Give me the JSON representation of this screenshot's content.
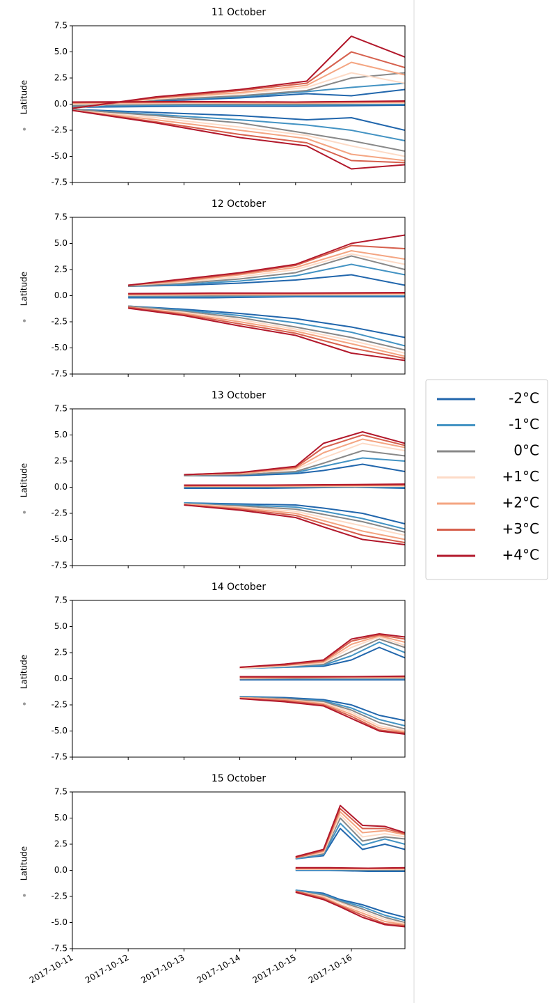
{
  "chart_data": [
    {
      "type": "line",
      "title": "11 October",
      "ylabel": "Latitude",
      "ylim": [
        -7.5,
        7.5
      ],
      "yticks": [
        7.5,
        5.0,
        2.5,
        0.0,
        -2.5,
        -5.0,
        -7.5
      ],
      "xlim": [
        0,
        5.96
      ],
      "xticks": [
        0,
        1,
        2,
        3,
        4,
        5
      ],
      "x": [
        0,
        1.5,
        3,
        4.2,
        5,
        5.96,
        null,
        0,
        2,
        4,
        5.96,
        null,
        0,
        1.5,
        3,
        4.2,
        5,
        5.96
      ],
      "series": [
        {
          "values": [
            -0.3,
            0.3,
            0.6,
            1.0,
            0.8,
            1.4,
            null,
            -0.3,
            -0.2,
            -0.2,
            -0.1,
            null,
            -0.5,
            -0.8,
            -1.1,
            -1.5,
            -1.3,
            -2.5
          ]
        },
        {
          "values": [
            -0.3,
            0.4,
            0.7,
            1.2,
            1.6,
            2.0,
            null,
            -0.2,
            -0.1,
            -0.1,
            0.0,
            null,
            -0.5,
            -1.0,
            -1.5,
            -2.0,
            -2.5,
            -3.5
          ]
        },
        {
          "values": [
            -0.3,
            0.4,
            0.8,
            1.3,
            2.5,
            3.0,
            null,
            -0.1,
            0.0,
            0.0,
            0.1,
            null,
            -0.5,
            -1.1,
            -1.8,
            -2.8,
            -3.5,
            -4.5
          ]
        },
        {
          "values": [
            -0.4,
            0.5,
            1.0,
            1.6,
            3.0,
            2.0,
            null,
            0.0,
            0.1,
            0.1,
            0.1,
            null,
            -0.6,
            -1.3,
            -2.2,
            -3.0,
            -4.0,
            -5.0
          ]
        },
        {
          "values": [
            -0.4,
            0.6,
            1.1,
            1.8,
            4.0,
            2.8,
            null,
            0.1,
            0.15,
            0.1,
            0.2,
            null,
            -0.6,
            -1.5,
            -2.5,
            -3.3,
            -4.8,
            -5.4
          ]
        },
        {
          "values": [
            -0.4,
            0.6,
            1.3,
            2.0,
            5.0,
            3.5,
            null,
            0.15,
            0.2,
            0.2,
            0.25,
            null,
            -0.6,
            -1.7,
            -2.9,
            -3.7,
            -5.4,
            -5.6
          ]
        },
        {
          "values": [
            -0.4,
            0.7,
            1.4,
            2.2,
            6.5,
            4.5,
            null,
            0.2,
            0.25,
            0.2,
            0.3,
            null,
            -0.6,
            -1.8,
            -3.2,
            -4.0,
            -6.2,
            -5.8
          ]
        }
      ]
    },
    {
      "type": "line",
      "title": "12 October",
      "ylabel": "Latitude",
      "ylim": [
        -7.5,
        7.5
      ],
      "yticks": [
        7.5,
        5.0,
        2.5,
        0.0,
        -2.5,
        -5.0,
        -7.5
      ],
      "xlim": [
        0,
        5.96
      ],
      "xticks": [
        0,
        1,
        2,
        3,
        4,
        5
      ],
      "x": [
        1,
        2,
        3,
        4,
        5,
        5.96,
        null,
        1,
        2.5,
        4,
        5.96,
        null,
        1,
        2,
        3,
        4,
        5,
        5.96
      ],
      "series": [
        {
          "values": [
            0.9,
            1.0,
            1.2,
            1.5,
            2.0,
            1.0,
            null,
            -0.2,
            -0.2,
            -0.1,
            -0.1,
            null,
            -1.0,
            -1.3,
            -1.7,
            -2.2,
            -3.0,
            -4.0
          ]
        },
        {
          "values": [
            0.9,
            1.1,
            1.4,
            1.9,
            3.0,
            2.0,
            null,
            -0.1,
            -0.1,
            0.0,
            0.0,
            null,
            -1.0,
            -1.4,
            -1.9,
            -2.6,
            -3.5,
            -4.8
          ]
        },
        {
          "values": [
            0.9,
            1.2,
            1.6,
            2.2,
            3.8,
            2.5,
            null,
            0.0,
            0.0,
            0.05,
            0.1,
            null,
            -1.0,
            -1.5,
            -2.1,
            -3.0,
            -4.0,
            -5.2
          ]
        },
        {
          "values": [
            1.0,
            1.3,
            1.8,
            2.5,
            4.0,
            3.0,
            null,
            0.05,
            0.1,
            0.1,
            0.1,
            null,
            -1.1,
            -1.6,
            -2.3,
            -3.2,
            -4.3,
            -5.5
          ]
        },
        {
          "values": [
            1.0,
            1.4,
            2.0,
            2.7,
            4.3,
            3.5,
            null,
            0.1,
            0.15,
            0.15,
            0.2,
            null,
            -1.1,
            -1.7,
            -2.5,
            -3.4,
            -4.6,
            -5.8
          ]
        },
        {
          "values": [
            1.0,
            1.5,
            2.1,
            2.9,
            4.8,
            4.5,
            null,
            0.15,
            0.2,
            0.2,
            0.25,
            null,
            -1.1,
            -1.8,
            -2.7,
            -3.6,
            -5.0,
            -6.0
          ]
        },
        {
          "values": [
            1.0,
            1.6,
            2.2,
            3.0,
            5.0,
            5.8,
            null,
            0.2,
            0.25,
            0.25,
            0.3,
            null,
            -1.2,
            -1.9,
            -2.9,
            -3.8,
            -5.5,
            -6.2
          ]
        }
      ]
    },
    {
      "type": "line",
      "title": "13 October",
      "ylabel": "Latitude",
      "ylim": [
        -7.5,
        7.5
      ],
      "yticks": [
        7.5,
        5.0,
        2.5,
        0.0,
        -2.5,
        -5.0,
        -7.5
      ],
      "xlim": [
        0,
        5.96
      ],
      "xticks": [
        0,
        1,
        2,
        3,
        4,
        5
      ],
      "x": [
        2,
        3,
        4,
        4.5,
        5.2,
        5.96,
        null,
        2,
        3.5,
        5,
        5.96,
        null,
        2,
        3,
        4,
        4.5,
        5.2,
        5.96
      ],
      "series": [
        {
          "values": [
            1.1,
            1.1,
            1.3,
            1.6,
            2.2,
            1.5,
            null,
            -0.1,
            -0.1,
            0.0,
            -0.1,
            null,
            -1.5,
            -1.6,
            -1.7,
            -2.0,
            -2.5,
            -3.5
          ]
        },
        {
          "values": [
            1.1,
            1.2,
            1.4,
            2.0,
            2.8,
            2.5,
            null,
            0.0,
            0.0,
            0.0,
            0.0,
            null,
            -1.5,
            -1.7,
            -1.9,
            -2.3,
            -3.0,
            -4.0
          ]
        },
        {
          "values": [
            1.1,
            1.2,
            1.5,
            2.3,
            3.5,
            3.0,
            null,
            0.05,
            0.05,
            0.05,
            0.1,
            null,
            -1.6,
            -1.8,
            -2.1,
            -2.6,
            -3.3,
            -4.3
          ]
        },
        {
          "values": [
            1.2,
            1.3,
            1.7,
            2.8,
            4.2,
            3.5,
            null,
            0.1,
            0.1,
            0.1,
            0.1,
            null,
            -1.6,
            -1.9,
            -2.3,
            -2.9,
            -3.7,
            -4.6
          ]
        },
        {
          "values": [
            1.2,
            1.3,
            1.8,
            3.3,
            4.6,
            3.8,
            null,
            0.1,
            0.1,
            0.15,
            0.2,
            null,
            -1.6,
            -2.0,
            -2.5,
            -3.2,
            -4.2,
            -5.0
          ]
        },
        {
          "values": [
            1.2,
            1.4,
            1.9,
            3.8,
            5.0,
            4.0,
            null,
            0.15,
            0.2,
            0.2,
            0.2,
            null,
            -1.7,
            -2.1,
            -2.7,
            -3.5,
            -4.6,
            -5.3
          ]
        },
        {
          "values": [
            1.2,
            1.4,
            2.0,
            4.2,
            5.3,
            4.2,
            null,
            0.2,
            0.2,
            0.25,
            0.3,
            null,
            -1.7,
            -2.2,
            -2.9,
            -3.8,
            -5.0,
            -5.5
          ]
        }
      ]
    },
    {
      "type": "line",
      "title": "14 October",
      "ylabel": "Latitude",
      "ylim": [
        -7.5,
        7.5
      ],
      "yticks": [
        7.5,
        5.0,
        2.5,
        0.0,
        -2.5,
        -5.0,
        -7.5
      ],
      "xlim": [
        0,
        5.96
      ],
      "xticks": [
        0,
        1,
        2,
        3,
        4,
        5
      ],
      "x": [
        3,
        3.8,
        4.5,
        5,
        5.5,
        5.96,
        null,
        3,
        4,
        5,
        5.96,
        null,
        3,
        3.8,
        4.5,
        5,
        5.5,
        5.96
      ],
      "series": [
        {
          "values": [
            1.0,
            1.1,
            1.2,
            1.8,
            3.0,
            2.0,
            null,
            -0.1,
            -0.1,
            -0.1,
            -0.1,
            null,
            -1.7,
            -1.8,
            -2.0,
            -2.5,
            -3.5,
            -4.0
          ]
        },
        {
          "values": [
            1.0,
            1.1,
            1.3,
            2.2,
            3.5,
            2.5,
            null,
            0.0,
            0.0,
            0.0,
            0.0,
            null,
            -1.7,
            -1.9,
            -2.1,
            -2.8,
            -3.9,
            -4.5
          ]
        },
        {
          "values": [
            1.0,
            1.2,
            1.4,
            2.6,
            3.8,
            3.0,
            null,
            0.0,
            0.05,
            0.05,
            0.05,
            null,
            -1.8,
            -1.9,
            -2.2,
            -3.0,
            -4.2,
            -4.8
          ]
        },
        {
          "values": [
            1.0,
            1.2,
            1.5,
            3.0,
            4.0,
            3.2,
            null,
            0.05,
            0.1,
            0.1,
            0.1,
            null,
            -1.8,
            -2.0,
            -2.3,
            -3.2,
            -4.5,
            -5.0
          ]
        },
        {
          "values": [
            1.1,
            1.3,
            1.6,
            3.3,
            4.1,
            3.5,
            null,
            0.1,
            0.1,
            0.15,
            0.15,
            null,
            -1.8,
            -2.0,
            -2.4,
            -3.4,
            -4.7,
            -5.1
          ]
        },
        {
          "values": [
            1.1,
            1.3,
            1.7,
            3.6,
            4.2,
            3.8,
            null,
            0.15,
            0.15,
            0.2,
            0.2,
            null,
            -1.9,
            -2.1,
            -2.5,
            -3.6,
            -4.9,
            -5.2
          ]
        },
        {
          "values": [
            1.1,
            1.4,
            1.8,
            3.8,
            4.3,
            4.0,
            null,
            0.2,
            0.2,
            0.2,
            0.25,
            null,
            -1.9,
            -2.2,
            -2.6,
            -3.8,
            -5.0,
            -5.3
          ]
        }
      ]
    },
    {
      "type": "line",
      "title": "15 October",
      "ylabel": "Latitude",
      "ylim": [
        -7.5,
        7.5
      ],
      "yticks": [
        7.5,
        5.0,
        2.5,
        0.0,
        -2.5,
        -5.0,
        -7.5
      ],
      "xlim": [
        0,
        5.96
      ],
      "xticks": [
        {
          "value": 0,
          "label": "2017-10-11"
        },
        {
          "value": 1,
          "label": "2017-10-12"
        },
        {
          "value": 2,
          "label": "2017-10-13"
        },
        {
          "value": 3,
          "label": "2017-10-14"
        },
        {
          "value": 4,
          "label": "2017-10-15"
        },
        {
          "value": 5,
          "label": "2017-10-16"
        }
      ],
      "x": [
        4,
        4.5,
        4.8,
        5.2,
        5.6,
        5.96,
        null,
        4,
        4.6,
        5.3,
        5.96,
        null,
        4,
        4.5,
        4.8,
        5.2,
        5.6,
        5.96
      ],
      "series": [
        {
          "values": [
            1.1,
            1.4,
            4.0,
            2.0,
            2.5,
            2.0,
            null,
            0.0,
            0.0,
            -0.1,
            -0.1,
            null,
            -1.9,
            -2.2,
            -2.8,
            -3.3,
            -4.0,
            -4.5
          ]
        },
        {
          "values": [
            1.1,
            1.5,
            4.5,
            2.4,
            3.0,
            2.5,
            null,
            0.05,
            0.05,
            0.0,
            0.0,
            null,
            -1.9,
            -2.3,
            -2.9,
            -3.5,
            -4.3,
            -4.8
          ]
        },
        {
          "values": [
            1.2,
            1.6,
            5.0,
            2.8,
            3.2,
            3.0,
            null,
            0.1,
            0.1,
            0.05,
            0.05,
            null,
            -2.0,
            -2.4,
            -3.0,
            -3.7,
            -4.5,
            -5.0
          ]
        },
        {
          "values": [
            1.2,
            1.7,
            5.3,
            3.2,
            3.5,
            3.2,
            null,
            0.1,
            0.1,
            0.1,
            0.1,
            null,
            -2.0,
            -2.5,
            -3.1,
            -3.9,
            -4.7,
            -5.1
          ]
        },
        {
          "values": [
            1.2,
            1.8,
            5.6,
            3.6,
            3.8,
            3.4,
            null,
            0.15,
            0.15,
            0.15,
            0.15,
            null,
            -2.0,
            -2.6,
            -3.3,
            -4.1,
            -4.9,
            -5.2
          ]
        },
        {
          "values": [
            1.2,
            1.9,
            5.9,
            4.0,
            4.0,
            3.5,
            null,
            0.2,
            0.2,
            0.2,
            0.2,
            null,
            -2.0,
            -2.7,
            -3.4,
            -4.3,
            -5.1,
            -5.3
          ]
        },
        {
          "values": [
            1.3,
            2.0,
            6.2,
            4.3,
            4.2,
            3.6,
            null,
            0.25,
            0.25,
            0.2,
            0.25,
            null,
            -2.1,
            -2.8,
            -3.5,
            -4.5,
            -5.2,
            -5.4
          ]
        }
      ]
    }
  ],
  "legend": [
    {
      "name": "-2°C",
      "color": "#2166ac"
    },
    {
      "name": "-1°C",
      "color": "#4393c3"
    },
    {
      "name": "0°C",
      "color": "#888888"
    },
    {
      "name": "+1°C",
      "color": "#fddbc7"
    },
    {
      "name": "+2°C",
      "color": "#f4a582"
    },
    {
      "name": "+3°C",
      "color": "#d6604d"
    },
    {
      "name": "+4°C",
      "color": "#b2182b"
    }
  ]
}
